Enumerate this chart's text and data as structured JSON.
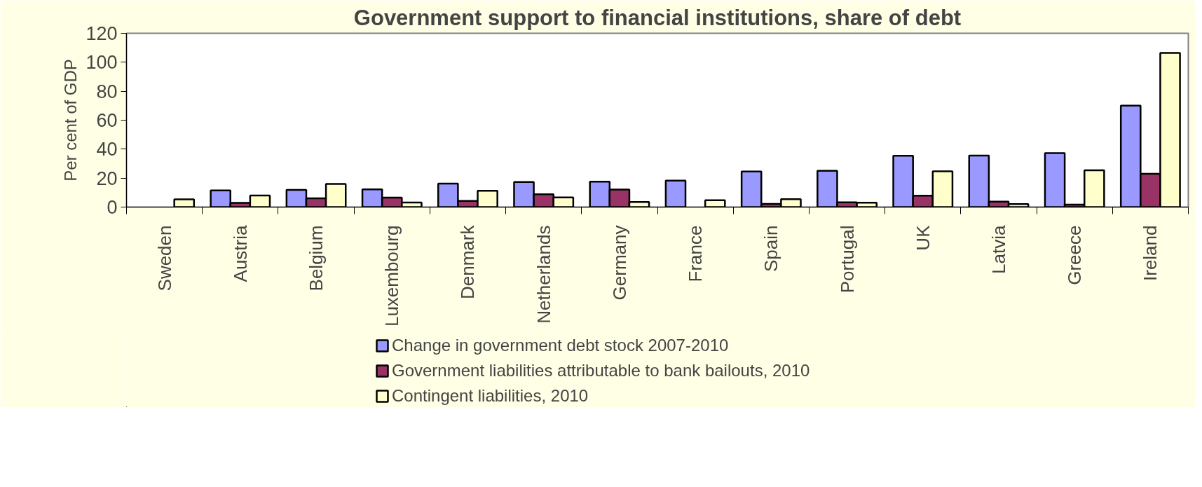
{
  "chart_data": {
    "type": "bar",
    "title": "Government support to financial institutions, share of debt",
    "ylabel": "Per cent of GDP",
    "categories": [
      "Sweden",
      "Austria",
      "Belgium",
      "Luxembourg",
      "Denmark",
      "Netherlands",
      "Germany",
      "France",
      "Spain",
      "Portugal",
      "UK",
      "Latvia",
      "Greece",
      "Ireland"
    ],
    "series": [
      {
        "name": "Change in government debt stock 2007-2010",
        "color": "#9999ff",
        "values": [
          null,
          11.5,
          11.8,
          12.2,
          16.2,
          17.3,
          17.6,
          18.3,
          24.6,
          25,
          35.5,
          35.6,
          37.3,
          70
        ]
      },
      {
        "name": "Government liabilities attributable to bank bailouts, 2010",
        "color": "#993366",
        "values": [
          null,
          2.9,
          6.1,
          6.5,
          4.2,
          8.8,
          12.1,
          null,
          2.2,
          3.3,
          7.9,
          3.7,
          1.7,
          23
        ]
      },
      {
        "name": "Contingent liabilities, 2010",
        "color": "#ffffcc",
        "values": [
          5.3,
          8,
          16,
          3.2,
          11.3,
          6.7,
          3.5,
          4.7,
          5.5,
          3,
          24.7,
          2,
          25.4,
          106.5
        ]
      }
    ],
    "ylim": [
      0,
      120
    ],
    "yticks": [
      0,
      20,
      40,
      60,
      80,
      100,
      120
    ],
    "grid": false,
    "legend": "bottom"
  }
}
